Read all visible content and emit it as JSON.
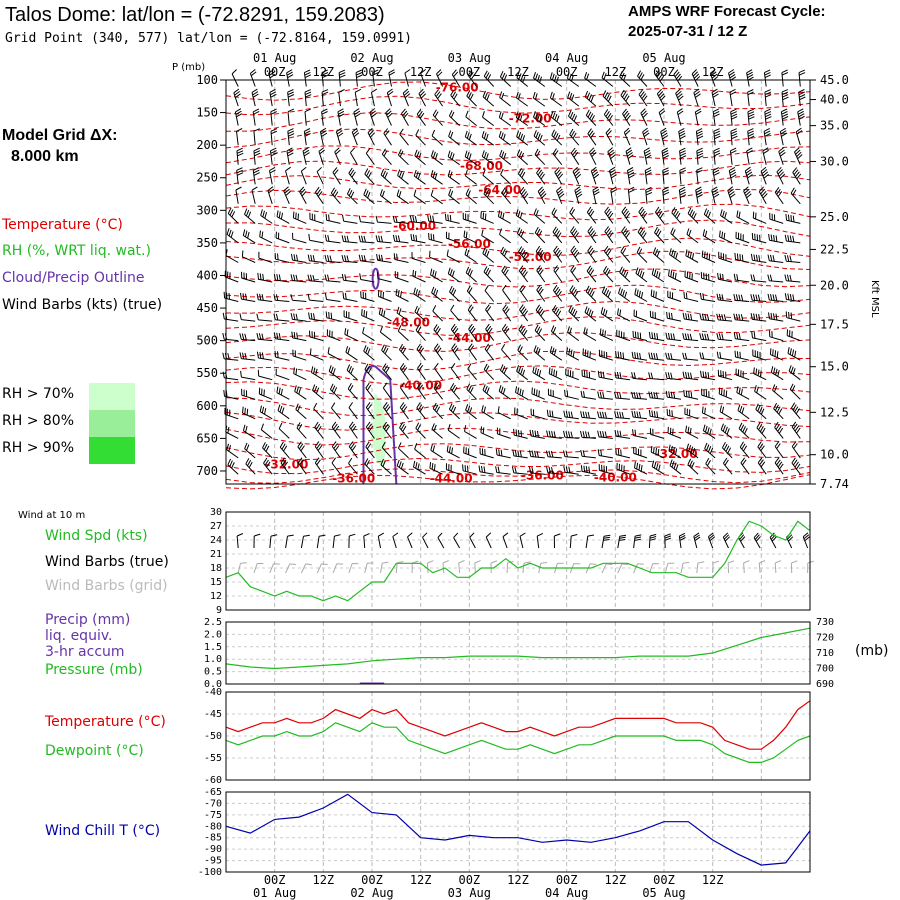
{
  "header": {
    "title": "Talos Dome:  lat/lon = (-72.8291, 159.2083)",
    "grid_point": "Grid Point (340, 577) lat/lon = (-72.8164, 159.0991)",
    "cycle_title": "AMPS WRF Forecast Cycle:",
    "cycle_time": "2025-07-31 / 12  Z"
  },
  "sidebar": {
    "model_grid_label": "Model Grid ΔX:",
    "model_grid_value": "8.000 km",
    "temperature_legend": "Temperature (°C)",
    "rh_legend": "RH (%, WRT liq. wat.)",
    "cloud_legend": "Cloud/Precip Outline",
    "wind_legend": "Wind Barbs (kts) (true)",
    "rh_levels": [
      {
        "label": "RH > 70%",
        "color": "#ccffcc"
      },
      {
        "label": "RH > 80%",
        "color": "#99ee99"
      },
      {
        "label": "RH > 90%",
        "color": "#33dd33"
      }
    ],
    "wind_10m_label": "Wind at 10 m",
    "wind_spd_legend": "Wind Spd (kts)",
    "wind_barbs_true_legend": "Wind Barbs (true)",
    "wind_barbs_grid_legend": "Wind Barbs (grid)",
    "precip_legend_1": "Precip (mm)",
    "precip_legend_2": "liq. equiv.",
    "precip_legend_3": "3-hr accum",
    "pressure_legend": "Pressure (mb)",
    "pressure_unit": "(mb)",
    "temp_legend": "Temperature (°C)",
    "dewpoint_legend": "Dewpoint (°C)",
    "windchill_legend": "Wind Chill T (°C)"
  },
  "colors": {
    "temperature": "#dd0000",
    "rh": "#22bb22",
    "cloud": "#6633aa",
    "wind": "#000000",
    "wind_grid": "#aaaaaa",
    "precip": "#6633aa",
    "pressure": "#22bb22",
    "dewpoint": "#22bb22",
    "windchill": "#0000aa"
  },
  "chart_data": [
    {
      "type": "line",
      "panel": "cross-section",
      "x_time_labels_top": [
        "00Z",
        "12Z",
        "00Z",
        "12Z",
        "00Z",
        "12Z",
        "00Z",
        "12Z",
        "00Z",
        "12Z"
      ],
      "x_date_labels_top": [
        "01 Aug",
        "02 Aug",
        "03 Aug",
        "04 Aug",
        "05 Aug"
      ],
      "ylabel": "P (mb)",
      "y_ticks": [
        100,
        150,
        200,
        250,
        300,
        350,
        400,
        450,
        500,
        550,
        600,
        650,
        700
      ],
      "ylim": [
        100,
        720
      ],
      "right_axis_label": "Kft MSL",
      "right_axis_values": [
        "45.0",
        "40.0",
        "35.0",
        "30.0",
        "25.0",
        "22.5",
        "20.0",
        "17.5",
        "15.0",
        "12.5",
        "10.0",
        "7.74"
      ],
      "right_axis_pressures": [
        100,
        130,
        170,
        225,
        310,
        360,
        415,
        475,
        540,
        610,
        675,
        720
      ],
      "temperature_labels": [
        {
          "text": "-76.00",
          "t": 19.0,
          "p": 118
        },
        {
          "text": "-72.00",
          "t": 25.0,
          "p": 165
        },
        {
          "text": "-68.00",
          "t": 21.0,
          "p": 238
        },
        {
          "text": "-64.00",
          "t": 22.5,
          "p": 275
        },
        {
          "text": "-60.00",
          "t": 15.5,
          "p": 330
        },
        {
          "text": "-56.00",
          "t": 20.0,
          "p": 358
        },
        {
          "text": "-52.00",
          "t": 25.0,
          "p": 378
        },
        {
          "text": "-48.00",
          "t": 15.0,
          "p": 478
        },
        {
          "text": "-44.00",
          "t": 20.0,
          "p": 502
        },
        {
          "text": "-40.00",
          "t": 16.0,
          "p": 575
        },
        {
          "text": "-32.00",
          "t": 5.0,
          "p": 696
        },
        {
          "text": "-36.00",
          "t": 10.5,
          "p": 718
        },
        {
          "text": "-44.00",
          "t": 18.5,
          "p": 718
        },
        {
          "text": "-36.00",
          "t": 26.0,
          "p": 713
        },
        {
          "text": "-40.00",
          "t": 32.0,
          "p": 716
        },
        {
          "text": "-32.00",
          "t": 37.0,
          "p": 680
        }
      ]
    },
    {
      "type": "line",
      "panel": "wind-10m",
      "y_ticks": [
        9,
        12,
        15,
        18,
        21,
        24,
        27,
        30
      ],
      "ylim": [
        9,
        30
      ],
      "series": [
        {
          "name": "Wind Spd (kts)",
          "x": [
            0,
            1,
            2,
            3,
            4,
            5,
            6,
            7,
            8,
            9,
            10,
            11,
            12,
            13,
            14,
            15,
            16,
            17,
            18,
            19,
            20,
            21,
            22,
            23,
            24,
            25,
            26,
            27,
            28,
            29,
            30,
            31,
            32,
            33,
            34,
            35,
            36,
            37,
            38,
            39,
            40,
            41,
            42,
            43,
            44,
            45,
            46,
            47,
            48
          ],
          "values": [
            16,
            17,
            14,
            13,
            12,
            13,
            12,
            12,
            11,
            12,
            11,
            13,
            15,
            15,
            19,
            19,
            19,
            17,
            18,
            16,
            16,
            18,
            18,
            20,
            18,
            19,
            18,
            18,
            18,
            18,
            18,
            19,
            19,
            19,
            18,
            17,
            17,
            17,
            16,
            16,
            16,
            19,
            24,
            28,
            27,
            25,
            24,
            28,
            26
          ]
        }
      ]
    },
    {
      "type": "line",
      "panel": "precip-pressure",
      "y_ticks_left": [
        "0.0",
        "0.5",
        "1.0",
        "1.5",
        "2.0",
        "2.5"
      ],
      "ylim_left": [
        0,
        2.5
      ],
      "y_ticks_right": [
        "690",
        "700",
        "710",
        "720",
        "730"
      ],
      "ylim_right": [
        690,
        730
      ],
      "series": [
        {
          "name": "Pressure (mb)",
          "x": [
            0,
            2,
            4,
            6,
            8,
            10,
            12,
            14,
            16,
            18,
            20,
            22,
            24,
            26,
            28,
            30,
            32,
            34,
            36,
            38,
            40,
            42,
            44,
            46,
            48
          ],
          "values": [
            703,
            701,
            700,
            701,
            702,
            703,
            705,
            706,
            707,
            707,
            708,
            708,
            708,
            707,
            707,
            707,
            707,
            708,
            708,
            708,
            710,
            715,
            720,
            723,
            726
          ]
        },
        {
          "name": "Precip (mm)",
          "x": [
            11,
            12,
            13
          ],
          "values": [
            0.02,
            0.02,
            0.02
          ]
        }
      ]
    },
    {
      "type": "line",
      "panel": "temperature-dewpoint",
      "y_ticks": [
        -60,
        -55,
        -50,
        -45,
        -40
      ],
      "ylim": [
        -60,
        -40
      ],
      "series": [
        {
          "name": "Temperature (°C)",
          "x": [
            0,
            1,
            2,
            3,
            4,
            5,
            6,
            7,
            8,
            9,
            10,
            11,
            12,
            13,
            14,
            15,
            16,
            17,
            18,
            19,
            20,
            21,
            22,
            23,
            24,
            25,
            26,
            27,
            28,
            29,
            30,
            31,
            32,
            33,
            34,
            35,
            36,
            37,
            38,
            39,
            40,
            41,
            42,
            43,
            44,
            45,
            46,
            47,
            48
          ],
          "values": [
            -48,
            -49,
            -48,
            -47,
            -47,
            -46,
            -47,
            -47,
            -46,
            -44,
            -45,
            -46,
            -44,
            -45,
            -44,
            -47,
            -48,
            -49,
            -50,
            -49,
            -48,
            -47,
            -48,
            -49,
            -49,
            -48,
            -49,
            -50,
            -49,
            -48,
            -48,
            -47,
            -46,
            -46,
            -46,
            -46,
            -46,
            -47,
            -47,
            -47,
            -48,
            -51,
            -52,
            -53,
            -53,
            -51,
            -48,
            -44,
            -42
          ]
        },
        {
          "name": "Dewpoint (°C)",
          "x": [
            0,
            1,
            2,
            3,
            4,
            5,
            6,
            7,
            8,
            9,
            10,
            11,
            12,
            13,
            14,
            15,
            16,
            17,
            18,
            19,
            20,
            21,
            22,
            23,
            24,
            25,
            26,
            27,
            28,
            29,
            30,
            31,
            32,
            33,
            34,
            35,
            36,
            37,
            38,
            39,
            40,
            41,
            42,
            43,
            44,
            45,
            46,
            47,
            48
          ],
          "values": [
            -51,
            -52,
            -51,
            -50,
            -50,
            -49,
            -50,
            -50,
            -49,
            -47,
            -48,
            -49,
            -47,
            -48,
            -48,
            -51,
            -52,
            -53,
            -54,
            -53,
            -52,
            -51,
            -52,
            -53,
            -53,
            -52,
            -53,
            -54,
            -53,
            -52,
            -52,
            -51,
            -50,
            -50,
            -50,
            -50,
            -50,
            -51,
            -51,
            -51,
            -52,
            -54,
            -55,
            -56,
            -56,
            -55,
            -53,
            -51,
            -50
          ]
        }
      ]
    },
    {
      "type": "line",
      "panel": "wind-chill",
      "y_ticks": [
        -100,
        -95,
        -90,
        -85,
        -80,
        -75,
        -70,
        -65
      ],
      "ylim": [
        -100,
        -65
      ],
      "x_time_labels_bottom": [
        "00Z",
        "12Z",
        "00Z",
        "12Z",
        "00Z",
        "12Z",
        "00Z",
        "12Z",
        "00Z",
        "12Z"
      ],
      "x_date_labels_bottom": [
        "01 Aug",
        "02 Aug",
        "03 Aug",
        "04 Aug",
        "05 Aug"
      ],
      "series": [
        {
          "name": "Wind Chill T (°C)",
          "x": [
            0,
            2,
            4,
            6,
            8,
            10,
            12,
            14,
            16,
            18,
            20,
            22,
            24,
            26,
            28,
            30,
            32,
            34,
            36,
            38,
            40,
            42,
            44,
            46,
            48
          ],
          "values": [
            -80,
            -83,
            -77,
            -76,
            -72,
            -66,
            -74,
            -75,
            -85,
            -86,
            -84,
            -85,
            -85,
            -87,
            -86,
            -87,
            -85,
            -82,
            -78,
            -78,
            -86,
            -92,
            -97,
            -96,
            -82
          ]
        }
      ]
    }
  ]
}
